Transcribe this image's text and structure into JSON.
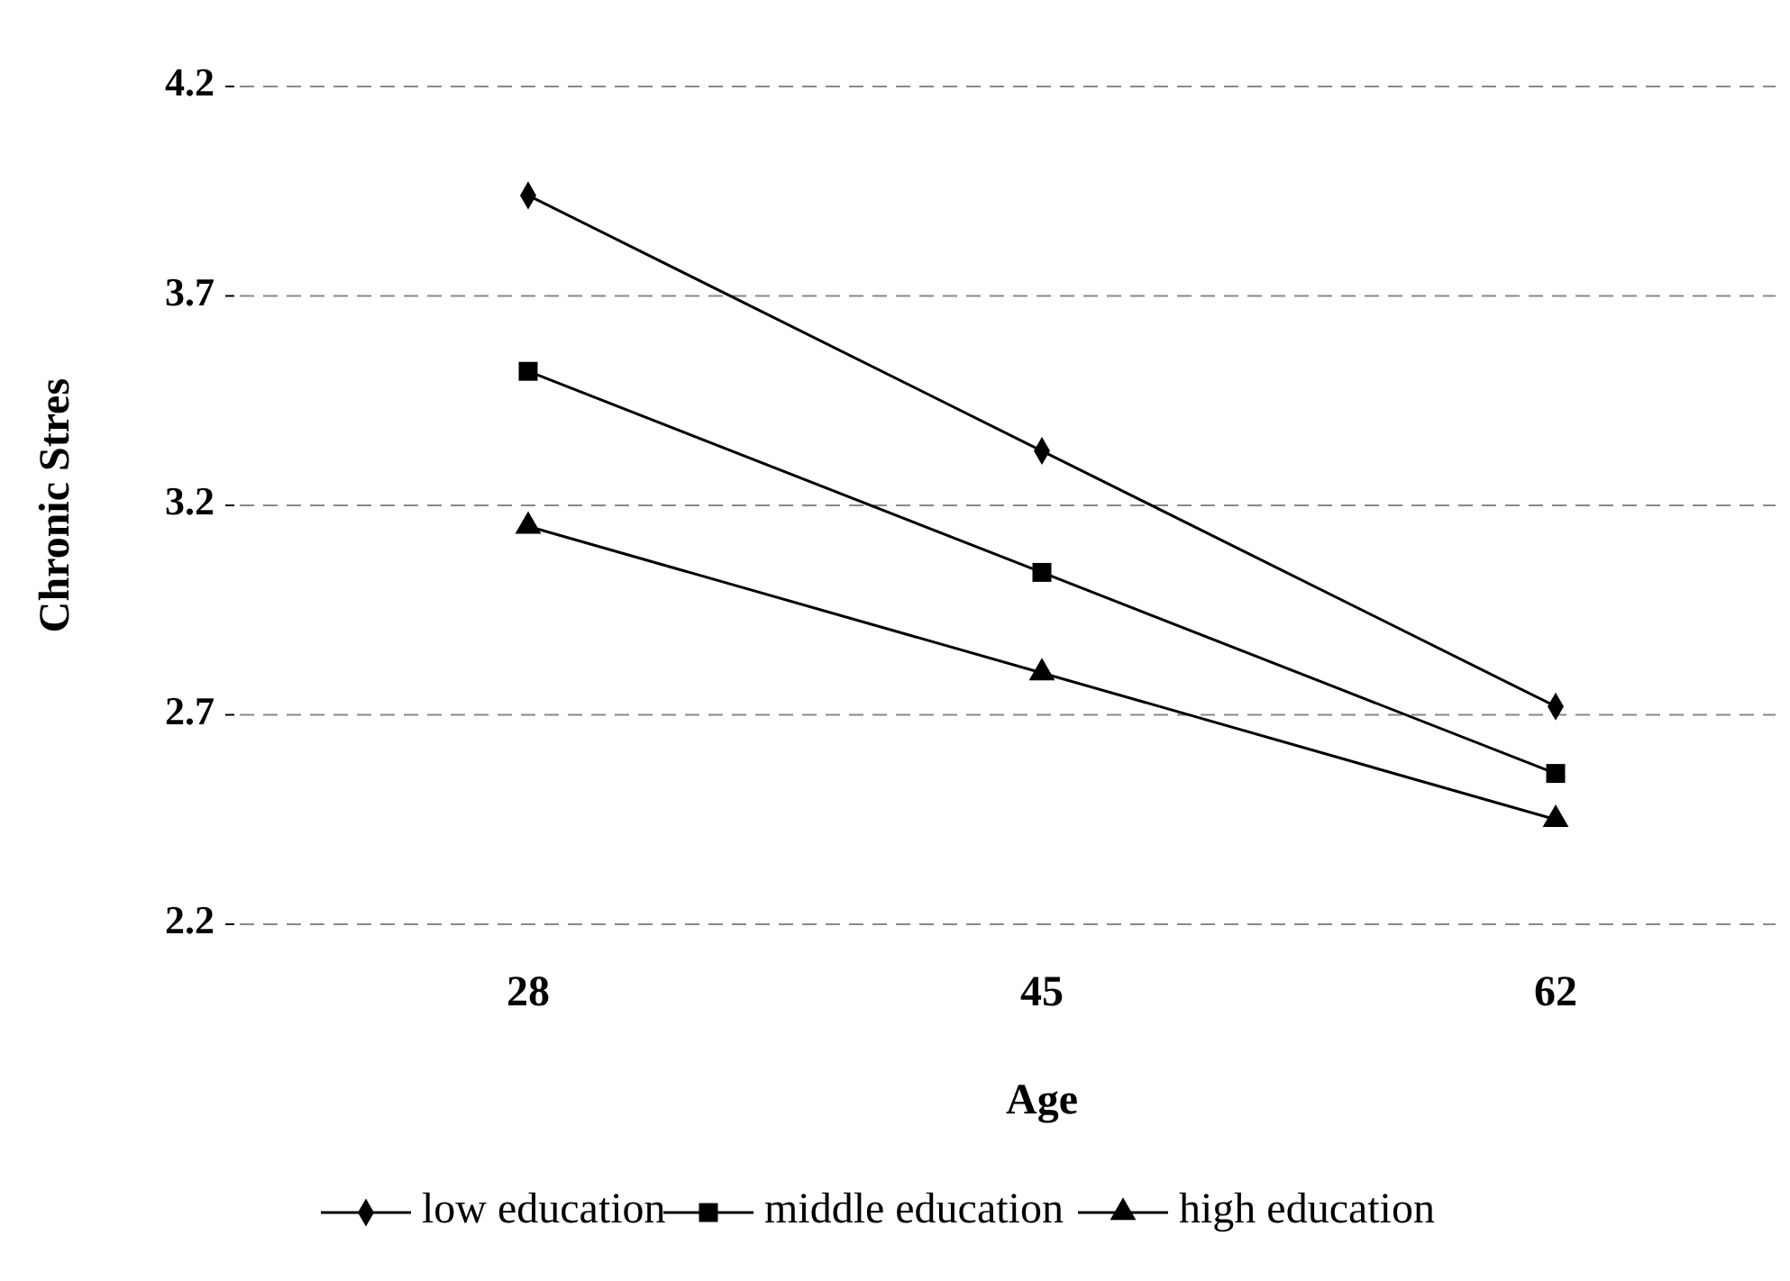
{
  "chart_data": {
    "type": "line",
    "xlabel": "Age",
    "ylabel": "Chronic Stres",
    "categories": [
      "28",
      "45",
      "62"
    ],
    "series": [
      {
        "name": "low education",
        "color": "#000000",
        "marker": "diamond",
        "values": [
          3.94,
          3.33,
          2.72
        ]
      },
      {
        "name": "middle education",
        "color": "#000000",
        "marker": "square",
        "values": [
          3.52,
          3.04,
          2.56
        ]
      },
      {
        "name": "high education",
        "color": "#000000",
        "marker": "triangle",
        "values": [
          3.15,
          2.8,
          2.45
        ]
      }
    ],
    "ylim": [
      2.2,
      4.2
    ],
    "yticks": [
      2.2,
      2.7,
      3.2,
      3.7,
      4.2
    ],
    "grid": "y",
    "legend": "bottom"
  }
}
